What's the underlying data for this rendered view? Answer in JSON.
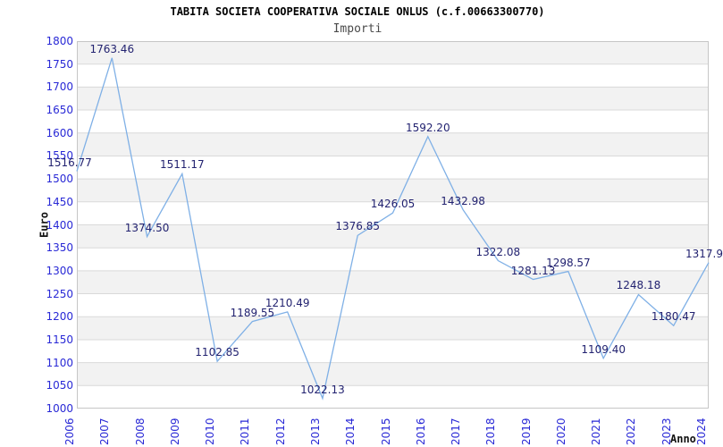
{
  "chart_data": {
    "type": "line",
    "title": "TABITA SOCIETA COOPERATIVA SOCIALE ONLUS (c.f.00663300770)",
    "subtitle": "Importi",
    "xlabel": "Anno",
    "ylabel": "Euro",
    "x": [
      "2006",
      "2007",
      "2008",
      "2009",
      "2010",
      "2011",
      "2012",
      "2013",
      "2014",
      "2015",
      "2016",
      "2017",
      "2018",
      "2019",
      "2020",
      "2021",
      "2022",
      "2023",
      "2024"
    ],
    "series": [
      {
        "name": "Importi",
        "values": [
          1516.77,
          1763.46,
          1374.5,
          1511.17,
          1102.85,
          1189.55,
          1210.49,
          1022.13,
          1376.85,
          1426.05,
          1592.2,
          1432.98,
          1322.08,
          1281.13,
          1298.57,
          1109.4,
          1248.18,
          1180.47,
          1317.9
        ]
      }
    ],
    "point_labels": [
      "1516.77",
      "1763.46",
      "1374.50",
      "1511.17",
      "1102.85",
      "1189.55",
      "1210.49",
      "1022.13",
      "1376.85",
      "1426.05",
      "1592.20",
      "1432.98",
      "1322.08",
      "1281.13",
      "1298.57",
      "1109.40",
      "1248.18",
      "1180.47",
      "1317.9"
    ],
    "ylim": [
      1000,
      1800
    ],
    "ytick_step": 50,
    "grid": "horizontal-only",
    "banded_background": true,
    "legend": "none",
    "colors": {
      "line": "#7fb0e6",
      "tick_label": "#2929d6",
      "point_label": "#222270",
      "band": "#f2f2f2",
      "grid": "#d9d9d9",
      "border": "#c6c6c6"
    },
    "label_dx": {
      "0": -8,
      "18": -5
    }
  }
}
